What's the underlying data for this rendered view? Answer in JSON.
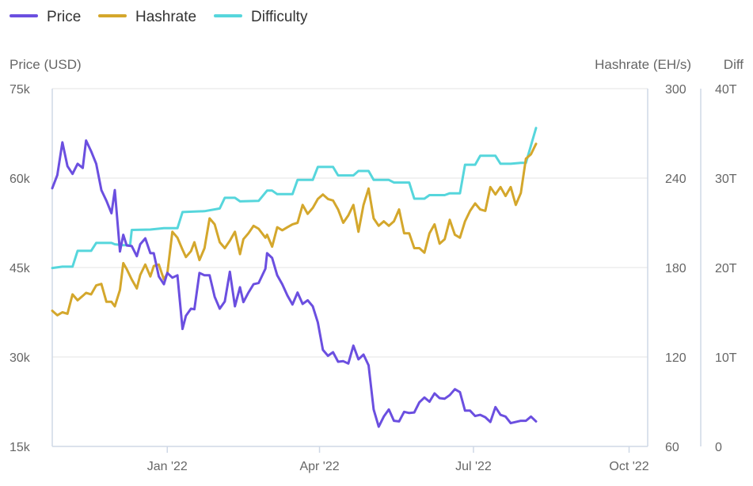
{
  "chart_data": {
    "type": "line",
    "legend": {
      "placement": "top-left",
      "items": [
        {
          "name": "Price",
          "color": "#6b4fe0"
        },
        {
          "name": "Hashrate",
          "color": "#d4a72c"
        },
        {
          "name": "Difficulty",
          "color": "#56d6dc"
        }
      ]
    },
    "y_left": {
      "title": "Price (USD)",
      "min": 15000,
      "max": 75000,
      "ticks": [
        75000,
        60000,
        45000,
        30000,
        15000
      ],
      "tick_labels": [
        "75k",
        "60k",
        "45k",
        "30k",
        "15k"
      ]
    },
    "y_right1": {
      "title": "Hashrate (EH/s)",
      "min": 60,
      "max": 300,
      "ticks": [
        300,
        240,
        180,
        120,
        60
      ],
      "tick_labels": [
        "300",
        "240",
        "180",
        "120",
        "60"
      ]
    },
    "y_right2": {
      "title": "Diff",
      "min": 0,
      "max": 40,
      "ticks": [
        40,
        30,
        20,
        10,
        0
      ],
      "tick_labels": [
        "40T",
        "30T",
        "20T",
        "10T",
        "0"
      ]
    },
    "x_axis": {
      "start": "2021-10-25",
      "end": "2022-10-12",
      "ticks": [
        "2022-01-01",
        "2022-04-01",
        "2022-07-01",
        "2022-10-01"
      ],
      "tick_labels": [
        "Jan '22",
        "Apr '22",
        "Jul '22",
        "Oct '22"
      ]
    },
    "grid": {
      "horizontal": true,
      "vertical": false
    },
    "series": [
      {
        "name": "Price",
        "axis": "left",
        "color": "#6b4fe0",
        "points": [
          [
            "2021-10-25",
            58300
          ],
          [
            "2021-10-28",
            60500
          ],
          [
            "2021-10-31",
            66000
          ],
          [
            "2021-11-03",
            62000
          ],
          [
            "2021-11-06",
            60700
          ],
          [
            "2021-11-09",
            62400
          ],
          [
            "2021-11-12",
            61700
          ],
          [
            "2021-11-14",
            66300
          ],
          [
            "2021-11-17",
            64500
          ],
          [
            "2021-11-20",
            62400
          ],
          [
            "2021-11-23",
            58000
          ],
          [
            "2021-11-26",
            56200
          ],
          [
            "2021-11-29",
            54100
          ],
          [
            "2021-12-01",
            58000
          ],
          [
            "2021-12-04",
            47700
          ],
          [
            "2021-12-06",
            50500
          ],
          [
            "2021-12-08",
            48700
          ],
          [
            "2021-12-11",
            48600
          ],
          [
            "2021-12-14",
            46900
          ],
          [
            "2021-12-16",
            48900
          ],
          [
            "2021-12-19",
            49900
          ],
          [
            "2021-12-22",
            47400
          ],
          [
            "2021-12-24",
            47400
          ],
          [
            "2021-12-27",
            43500
          ],
          [
            "2021-12-30",
            42200
          ],
          [
            "2022-01-01",
            44100
          ],
          [
            "2022-01-04",
            43300
          ],
          [
            "2022-01-07",
            43700
          ],
          [
            "2022-01-10",
            34700
          ],
          [
            "2022-01-12",
            36900
          ],
          [
            "2022-01-15",
            38100
          ],
          [
            "2022-01-17",
            38000
          ],
          [
            "2022-01-20",
            44100
          ],
          [
            "2022-01-23",
            43700
          ],
          [
            "2022-01-26",
            43700
          ],
          [
            "2022-01-29",
            40100
          ],
          [
            "2022-02-01",
            38100
          ],
          [
            "2022-02-04",
            39300
          ],
          [
            "2022-02-07",
            44300
          ],
          [
            "2022-02-10",
            38500
          ],
          [
            "2022-02-13",
            41700
          ],
          [
            "2022-02-15",
            39200
          ],
          [
            "2022-02-18",
            40800
          ],
          [
            "2022-02-21",
            42200
          ],
          [
            "2022-02-24",
            42400
          ],
          [
            "2022-02-28",
            44800
          ],
          [
            "2022-03-01",
            47400
          ],
          [
            "2022-03-04",
            46600
          ],
          [
            "2022-03-07",
            43700
          ],
          [
            "2022-03-10",
            42200
          ],
          [
            "2022-03-13",
            40300
          ],
          [
            "2022-03-16",
            38800
          ],
          [
            "2022-03-19",
            40800
          ],
          [
            "2022-03-22",
            38900
          ],
          [
            "2022-03-25",
            39500
          ],
          [
            "2022-03-28",
            38500
          ],
          [
            "2022-03-31",
            35800
          ],
          [
            "2022-04-03",
            31200
          ],
          [
            "2022-04-06",
            30200
          ],
          [
            "2022-04-09",
            30800
          ],
          [
            "2022-04-12",
            29200
          ],
          [
            "2022-04-15",
            29300
          ],
          [
            "2022-04-18",
            28900
          ],
          [
            "2022-04-21",
            31900
          ],
          [
            "2022-04-24",
            29600
          ],
          [
            "2022-04-27",
            30400
          ],
          [
            "2022-04-30",
            28600
          ],
          [
            "2022-05-03",
            21200
          ],
          [
            "2022-05-06",
            18300
          ],
          [
            "2022-05-09",
            20000
          ],
          [
            "2022-05-12",
            21200
          ],
          [
            "2022-05-15",
            19300
          ],
          [
            "2022-05-18",
            19200
          ],
          [
            "2022-05-21",
            20800
          ],
          [
            "2022-05-24",
            20600
          ],
          [
            "2022-05-27",
            20700
          ],
          [
            "2022-05-30",
            22400
          ],
          [
            "2022-06-02",
            23200
          ],
          [
            "2022-06-05",
            22500
          ],
          [
            "2022-06-08",
            23900
          ],
          [
            "2022-06-11",
            23100
          ],
          [
            "2022-06-14",
            23000
          ],
          [
            "2022-06-17",
            23600
          ],
          [
            "2022-06-20",
            24600
          ],
          [
            "2022-06-23",
            24100
          ],
          [
            "2022-06-26",
            21000
          ],
          [
            "2022-06-29",
            21000
          ],
          [
            "2022-07-02",
            20100
          ],
          [
            "2022-07-05",
            20300
          ],
          [
            "2022-07-08",
            19900
          ],
          [
            "2022-07-11",
            19100
          ],
          [
            "2022-07-14",
            21600
          ],
          [
            "2022-07-17",
            20300
          ],
          [
            "2022-07-20",
            20000
          ],
          [
            "2022-07-23",
            18900
          ],
          [
            "2022-07-26",
            19100
          ],
          [
            "2022-07-29",
            19300
          ],
          [
            "2022-08-01",
            19300
          ],
          [
            "2022-08-04",
            20000
          ],
          [
            "2022-08-07",
            19200
          ]
        ]
      },
      {
        "name": "Hashrate",
        "axis": "right1",
        "color": "#d4a72c",
        "points": [
          [
            "2021-10-25",
            151
          ],
          [
            "2021-10-28",
            148
          ],
          [
            "2021-10-31",
            150
          ],
          [
            "2021-11-03",
            149
          ],
          [
            "2021-11-06",
            162
          ],
          [
            "2021-11-09",
            158
          ],
          [
            "2021-11-12",
            161
          ],
          [
            "2021-11-14",
            163
          ],
          [
            "2021-11-17",
            162
          ],
          [
            "2021-11-20",
            168
          ],
          [
            "2021-11-23",
            169
          ],
          [
            "2021-11-26",
            157
          ],
          [
            "2021-11-29",
            157
          ],
          [
            "2021-12-01",
            154
          ],
          [
            "2021-12-04",
            165
          ],
          [
            "2021-12-06",
            183
          ],
          [
            "2021-12-08",
            179
          ],
          [
            "2021-12-11",
            172
          ],
          [
            "2021-12-14",
            166
          ],
          [
            "2021-12-16",
            175
          ],
          [
            "2021-12-19",
            182
          ],
          [
            "2021-12-22",
            174
          ],
          [
            "2021-12-24",
            181
          ],
          [
            "2021-12-27",
            182
          ],
          [
            "2021-12-30",
            172
          ],
          [
            "2022-01-01",
            176
          ],
          [
            "2022-01-04",
            204
          ],
          [
            "2022-01-07",
            200
          ],
          [
            "2022-01-10",
            192
          ],
          [
            "2022-01-12",
            187
          ],
          [
            "2022-01-15",
            191
          ],
          [
            "2022-01-17",
            197
          ],
          [
            "2022-01-20",
            185
          ],
          [
            "2022-01-23",
            193
          ],
          [
            "2022-01-26",
            213
          ],
          [
            "2022-01-29",
            209
          ],
          [
            "2022-02-01",
            197
          ],
          [
            "2022-02-04",
            193
          ],
          [
            "2022-02-07",
            198
          ],
          [
            "2022-02-10",
            204
          ],
          [
            "2022-02-13",
            189
          ],
          [
            "2022-02-15",
            199
          ],
          [
            "2022-02-18",
            203
          ],
          [
            "2022-02-21",
            208
          ],
          [
            "2022-02-24",
            206
          ],
          [
            "2022-02-28",
            200
          ],
          [
            "2022-03-01",
            202
          ],
          [
            "2022-03-04",
            194
          ],
          [
            "2022-03-07",
            207
          ],
          [
            "2022-03-10",
            205
          ],
          [
            "2022-03-13",
            207
          ],
          [
            "2022-03-16",
            209
          ],
          [
            "2022-03-19",
            210
          ],
          [
            "2022-03-22",
            222
          ],
          [
            "2022-03-25",
            216
          ],
          [
            "2022-03-28",
            220
          ],
          [
            "2022-03-31",
            226
          ],
          [
            "2022-04-03",
            229
          ],
          [
            "2022-04-06",
            226
          ],
          [
            "2022-04-09",
            225
          ],
          [
            "2022-04-12",
            219
          ],
          [
            "2022-04-15",
            210
          ],
          [
            "2022-04-18",
            215
          ],
          [
            "2022-04-21",
            222
          ],
          [
            "2022-04-24",
            204
          ],
          [
            "2022-04-27",
            222
          ],
          [
            "2022-04-30",
            233
          ],
          [
            "2022-05-03",
            213
          ],
          [
            "2022-05-06",
            208
          ],
          [
            "2022-05-09",
            211
          ],
          [
            "2022-05-12",
            208
          ],
          [
            "2022-05-15",
            211
          ],
          [
            "2022-05-18",
            219
          ],
          [
            "2022-05-21",
            203
          ],
          [
            "2022-05-24",
            203
          ],
          [
            "2022-05-27",
            193
          ],
          [
            "2022-05-30",
            193
          ],
          [
            "2022-06-02",
            190
          ],
          [
            "2022-06-05",
            203
          ],
          [
            "2022-06-08",
            209
          ],
          [
            "2022-06-11",
            196
          ],
          [
            "2022-06-14",
            199
          ],
          [
            "2022-06-17",
            212
          ],
          [
            "2022-06-20",
            202
          ],
          [
            "2022-06-23",
            200
          ],
          [
            "2022-06-26",
            211
          ],
          [
            "2022-06-29",
            218
          ],
          [
            "2022-07-02",
            223
          ],
          [
            "2022-07-05",
            219
          ],
          [
            "2022-07-08",
            218
          ],
          [
            "2022-07-11",
            234
          ],
          [
            "2022-07-14",
            229
          ],
          [
            "2022-07-17",
            234
          ],
          [
            "2022-07-20",
            228
          ],
          [
            "2022-07-23",
            234
          ],
          [
            "2022-07-26",
            222
          ],
          [
            "2022-07-29",
            230
          ],
          [
            "2022-08-01",
            253
          ],
          [
            "2022-08-04",
            256
          ],
          [
            "2022-08-07",
            263
          ]
        ]
      },
      {
        "name": "Difficulty",
        "axis": "right2",
        "color": "#56d6dc",
        "points": [
          [
            "2021-10-25",
            19.95
          ],
          [
            "2021-10-31",
            20.1
          ],
          [
            "2021-11-06",
            20.1
          ],
          [
            "2021-11-09",
            21.87
          ],
          [
            "2021-11-17",
            21.87
          ],
          [
            "2021-11-20",
            22.75
          ],
          [
            "2021-11-29",
            22.75
          ],
          [
            "2021-12-01",
            22.6
          ],
          [
            "2021-12-06",
            22.5
          ],
          [
            "2021-12-10",
            22.5
          ],
          [
            "2021-12-11",
            24.2
          ],
          [
            "2021-12-22",
            24.25
          ],
          [
            "2021-12-30",
            24.4
          ],
          [
            "2022-01-07",
            24.4
          ],
          [
            "2022-01-10",
            26.2
          ],
          [
            "2022-01-23",
            26.3
          ],
          [
            "2022-02-01",
            26.6
          ],
          [
            "2022-02-04",
            27.8
          ],
          [
            "2022-02-10",
            27.8
          ],
          [
            "2022-02-13",
            27.4
          ],
          [
            "2022-02-24",
            27.45
          ],
          [
            "2022-03-01",
            28.6
          ],
          [
            "2022-03-04",
            28.6
          ],
          [
            "2022-03-07",
            28.2
          ],
          [
            "2022-03-16",
            28.2
          ],
          [
            "2022-03-19",
            29.8
          ],
          [
            "2022-03-28",
            29.8
          ],
          [
            "2022-03-31",
            31.25
          ],
          [
            "2022-04-09",
            31.25
          ],
          [
            "2022-04-12",
            30.3
          ],
          [
            "2022-04-21",
            30.3
          ],
          [
            "2022-04-24",
            30.8
          ],
          [
            "2022-04-30",
            30.8
          ],
          [
            "2022-05-03",
            29.8
          ],
          [
            "2022-05-12",
            29.8
          ],
          [
            "2022-05-15",
            29.5
          ],
          [
            "2022-05-24",
            29.5
          ],
          [
            "2022-05-27",
            27.7
          ],
          [
            "2022-06-02",
            27.7
          ],
          [
            "2022-06-05",
            28.1
          ],
          [
            "2022-06-14",
            28.1
          ],
          [
            "2022-06-17",
            28.3
          ],
          [
            "2022-06-23",
            28.3
          ],
          [
            "2022-06-26",
            31.5
          ],
          [
            "2022-07-02",
            31.5
          ],
          [
            "2022-07-05",
            32.5
          ],
          [
            "2022-07-14",
            32.5
          ],
          [
            "2022-07-17",
            31.6
          ],
          [
            "2022-07-23",
            31.6
          ],
          [
            "2022-07-29",
            31.7
          ],
          [
            "2022-08-01",
            31.7
          ],
          [
            "2022-08-07",
            35.6
          ]
        ]
      }
    ]
  }
}
